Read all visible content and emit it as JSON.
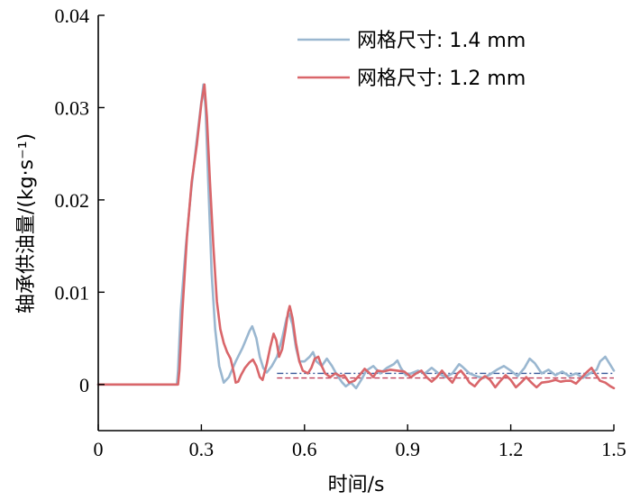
{
  "chart_data": {
    "type": "line",
    "xlabel": "时间/s",
    "ylabel": "轴承供油量/(kg·s⁻¹)",
    "xlim": [
      0,
      1.5
    ],
    "ylim": [
      -0.005,
      0.04
    ],
    "x_ticks": [
      "0",
      "0.3",
      "0.6",
      "0.9",
      "1.2",
      "1.5"
    ],
    "x_tick_values": [
      0,
      0.3,
      0.6,
      0.9,
      1.2,
      1.5
    ],
    "y_ticks": [
      "0",
      "0.01",
      "0.02",
      "0.03",
      "0.04"
    ],
    "y_tick_values": [
      0,
      0.01,
      0.02,
      0.03,
      0.04
    ],
    "grid": false,
    "legend_position": "top-right",
    "series": [
      {
        "name": "网格尺寸: 1.4 mm",
        "color": "#9ab7d0",
        "points": [
          [
            0,
            0
          ],
          [
            0.229,
            0
          ],
          [
            0.232,
            0.0015
          ],
          [
            0.24,
            0.008
          ],
          [
            0.255,
            0.015
          ],
          [
            0.27,
            0.021
          ],
          [
            0.285,
            0.026
          ],
          [
            0.298,
            0.03
          ],
          [
            0.306,
            0.0325
          ],
          [
            0.312,
            0.03
          ],
          [
            0.32,
            0.022
          ],
          [
            0.33,
            0.012
          ],
          [
            0.34,
            0.006
          ],
          [
            0.352,
            0.002
          ],
          [
            0.365,
            0.0002
          ],
          [
            0.38,
            0.0008
          ],
          [
            0.4,
            0.0025
          ],
          [
            0.42,
            0.004
          ],
          [
            0.44,
            0.0058
          ],
          [
            0.448,
            0.0063
          ],
          [
            0.46,
            0.005
          ],
          [
            0.47,
            0.003
          ],
          [
            0.48,
            0.0018
          ],
          [
            0.49,
            0.0013
          ],
          [
            0.505,
            0.002
          ],
          [
            0.52,
            0.003
          ],
          [
            0.535,
            0.005
          ],
          [
            0.548,
            0.0072
          ],
          [
            0.555,
            0.0077
          ],
          [
            0.565,
            0.0065
          ],
          [
            0.575,
            0.004
          ],
          [
            0.585,
            0.0025
          ],
          [
            0.6,
            0.0025
          ],
          [
            0.615,
            0.003
          ],
          [
            0.625,
            0.0035
          ],
          [
            0.635,
            0.0025
          ],
          [
            0.65,
            0.002
          ],
          [
            0.665,
            0.0028
          ],
          [
            0.68,
            0.002
          ],
          [
            0.695,
            0.001
          ],
          [
            0.71,
            0.0002
          ],
          [
            0.72,
            -0.0002
          ],
          [
            0.735,
            0.0002
          ],
          [
            0.75,
            -0.0004
          ],
          [
            0.765,
            0.0005
          ],
          [
            0.78,
            0.0015
          ],
          [
            0.8,
            0.002
          ],
          [
            0.82,
            0.0012
          ],
          [
            0.84,
            0.0018
          ],
          [
            0.86,
            0.0022
          ],
          [
            0.87,
            0.0026
          ],
          [
            0.88,
            0.0018
          ],
          [
            0.895,
            0.001
          ],
          [
            0.91,
            0.0012
          ],
          [
            0.93,
            0.0015
          ],
          [
            0.95,
            0.0012
          ],
          [
            0.97,
            0.0018
          ],
          [
            0.99,
            0.0012
          ],
          [
            1.01,
            0.0008
          ],
          [
            1.03,
            0.0012
          ],
          [
            1.05,
            0.0022
          ],
          [
            1.06,
            0.0019
          ],
          [
            1.08,
            0.0012
          ],
          [
            1.1,
            0.0009
          ],
          [
            1.12,
            0.0007
          ],
          [
            1.14,
            0.0011
          ],
          [
            1.16,
            0.0016
          ],
          [
            1.18,
            0.002
          ],
          [
            1.2,
            0.0015
          ],
          [
            1.22,
            0.0009
          ],
          [
            1.24,
            0.0018
          ],
          [
            1.255,
            0.0028
          ],
          [
            1.27,
            0.0023
          ],
          [
            1.29,
            0.0012
          ],
          [
            1.31,
            0.0016
          ],
          [
            1.33,
            0.001
          ],
          [
            1.35,
            0.0014
          ],
          [
            1.37,
            0.0009
          ],
          [
            1.39,
            0.0012
          ],
          [
            1.41,
            0.0007
          ],
          [
            1.43,
            0.0012
          ],
          [
            1.45,
            0.0016
          ],
          [
            1.46,
            0.0025
          ],
          [
            1.475,
            0.003
          ],
          [
            1.485,
            0.0024
          ],
          [
            1.5,
            0.0015
          ]
        ]
      },
      {
        "name": "网格尺寸: 1.2 mm",
        "color": "#d9666a",
        "points": [
          [
            0,
            0
          ],
          [
            0.232,
            0
          ],
          [
            0.236,
            0.0015
          ],
          [
            0.245,
            0.008
          ],
          [
            0.258,
            0.016
          ],
          [
            0.272,
            0.022
          ],
          [
            0.287,
            0.026
          ],
          [
            0.3,
            0.0305
          ],
          [
            0.309,
            0.0325
          ],
          [
            0.316,
            0.029
          ],
          [
            0.325,
            0.022
          ],
          [
            0.335,
            0.015
          ],
          [
            0.345,
            0.009
          ],
          [
            0.355,
            0.006
          ],
          [
            0.365,
            0.0045
          ],
          [
            0.375,
            0.0035
          ],
          [
            0.385,
            0.0028
          ],
          [
            0.395,
            0.0012
          ],
          [
            0.4,
            0.0002
          ],
          [
            0.407,
            0.0003
          ],
          [
            0.415,
            0.001
          ],
          [
            0.427,
            0.0018
          ],
          [
            0.44,
            0.0024
          ],
          [
            0.45,
            0.0027
          ],
          [
            0.46,
            0.002
          ],
          [
            0.47,
            0.0008
          ],
          [
            0.478,
            0.0005
          ],
          [
            0.49,
            0.0022
          ],
          [
            0.5,
            0.004
          ],
          [
            0.51,
            0.0055
          ],
          [
            0.518,
            0.0048
          ],
          [
            0.526,
            0.003
          ],
          [
            0.535,
            0.0038
          ],
          [
            0.545,
            0.006
          ],
          [
            0.552,
            0.0078
          ],
          [
            0.557,
            0.0085
          ],
          [
            0.565,
            0.0072
          ],
          [
            0.575,
            0.0045
          ],
          [
            0.585,
            0.0025
          ],
          [
            0.595,
            0.0015
          ],
          [
            0.61,
            0.0012
          ],
          [
            0.62,
            0.0018
          ],
          [
            0.63,
            0.0028
          ],
          [
            0.64,
            0.003
          ],
          [
            0.65,
            0.002
          ],
          [
            0.66,
            0.0012
          ],
          [
            0.675,
            0.0008
          ],
          [
            0.69,
            0.0012
          ],
          [
            0.705,
            0.0009
          ],
          [
            0.715,
            0.001
          ],
          [
            0.73,
            0.0002
          ],
          [
            0.745,
            0.0004
          ],
          [
            0.76,
            0.001
          ],
          [
            0.775,
            0.0017
          ],
          [
            0.79,
            0.0012
          ],
          [
            0.8,
            0.0008
          ],
          [
            0.812,
            0.0015
          ],
          [
            0.83,
            0.0014
          ],
          [
            0.85,
            0.0016
          ],
          [
            0.87,
            0.0015
          ],
          [
            0.89,
            0.0014
          ],
          [
            0.91,
            0.0008
          ],
          [
            0.925,
            0.0012
          ],
          [
            0.94,
            0.0015
          ],
          [
            0.955,
            0.0008
          ],
          [
            0.97,
            0.0003
          ],
          [
            0.985,
            0.0008
          ],
          [
            1.0,
            0.0015
          ],
          [
            1.015,
            0.0008
          ],
          [
            1.03,
            0.0002
          ],
          [
            1.045,
            0.0012
          ],
          [
            1.055,
            0.0015
          ],
          [
            1.07,
            0.0008
          ],
          [
            1.08,
            0.0002
          ],
          [
            1.095,
            -0.0002
          ],
          [
            1.11,
            0.0005
          ],
          [
            1.125,
            0.0009
          ],
          [
            1.14,
            0.0005
          ],
          [
            1.155,
            -0.0003
          ],
          [
            1.17,
            0.0004
          ],
          [
            1.185,
            0.001
          ],
          [
            1.2,
            0.0005
          ],
          [
            1.215,
            -0.0003
          ],
          [
            1.23,
            0.0002
          ],
          [
            1.245,
            0.0008
          ],
          [
            1.26,
            0.0002
          ],
          [
            1.275,
            -0.0003
          ],
          [
            1.29,
            0.0002
          ],
          [
            1.31,
            0.0003
          ],
          [
            1.33,
            0.0005
          ],
          [
            1.345,
            0.0003
          ],
          [
            1.36,
            0.0004
          ],
          [
            1.375,
            0.0004
          ],
          [
            1.39,
            0.0001
          ],
          [
            1.405,
            0.0007
          ],
          [
            1.42,
            0.0013
          ],
          [
            1.435,
            0.0018
          ],
          [
            1.445,
            0.0012
          ],
          [
            1.46,
            0.0004
          ],
          [
            1.475,
            0.0002
          ],
          [
            1.49,
            -0.0002
          ],
          [
            1.5,
            -0.0004
          ]
        ]
      }
    ],
    "reference_lines": [
      {
        "style": "dash-dot",
        "color": "#3a5a9a",
        "x": [
          0.52,
          1.5
        ],
        "y": 0.0012
      },
      {
        "style": "dashed",
        "color": "#c0405a",
        "x": [
          0.52,
          1.5
        ],
        "y": 0.0007
      }
    ]
  }
}
